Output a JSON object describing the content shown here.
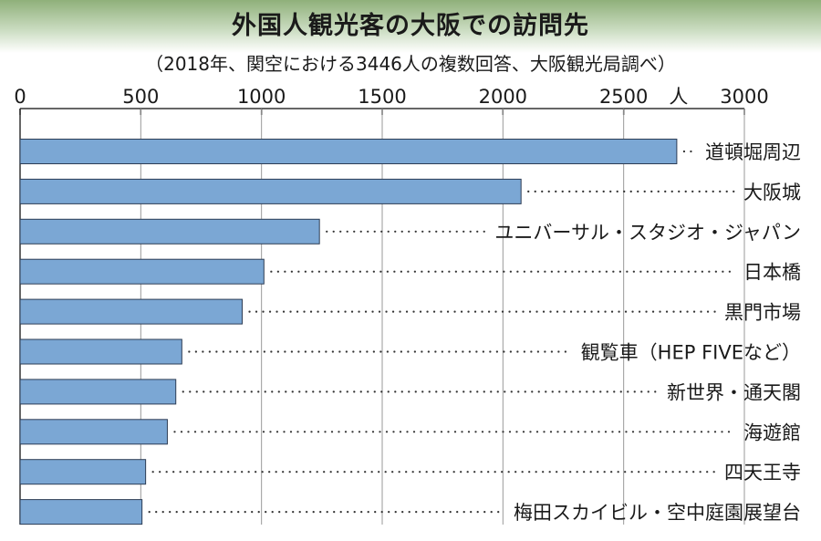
{
  "chart_data": {
    "type": "bar",
    "orientation": "horizontal",
    "title": "外国人観光客の大阪での訪問先",
    "subtitle": "（2018年、関空における3446人の複数回答、大阪観光局調べ）",
    "unit": "人",
    "xlim": [
      0,
      3000
    ],
    "ticks": [
      0,
      500,
      1000,
      1500,
      2000,
      2500,
      3000
    ],
    "tick_labels": [
      "0",
      "500",
      "1000",
      "1500",
      "2000",
      "2500",
      "3000"
    ],
    "categories": [
      "道頓堀周辺",
      "大阪城",
      "ユニバーサル・スタジオ・ジャパン",
      "日本橋",
      "黒門市場",
      "観覧車（HEP FIVEなど）",
      "新世界・通天閣",
      "海遊館",
      "四天王寺",
      "梅田スカイビル・空中庭園展望台"
    ],
    "values": [
      2720,
      2075,
      1240,
      1010,
      920,
      670,
      645,
      610,
      520,
      505
    ],
    "bar_color": "#7ba7d4",
    "leader_style": "dotted"
  }
}
